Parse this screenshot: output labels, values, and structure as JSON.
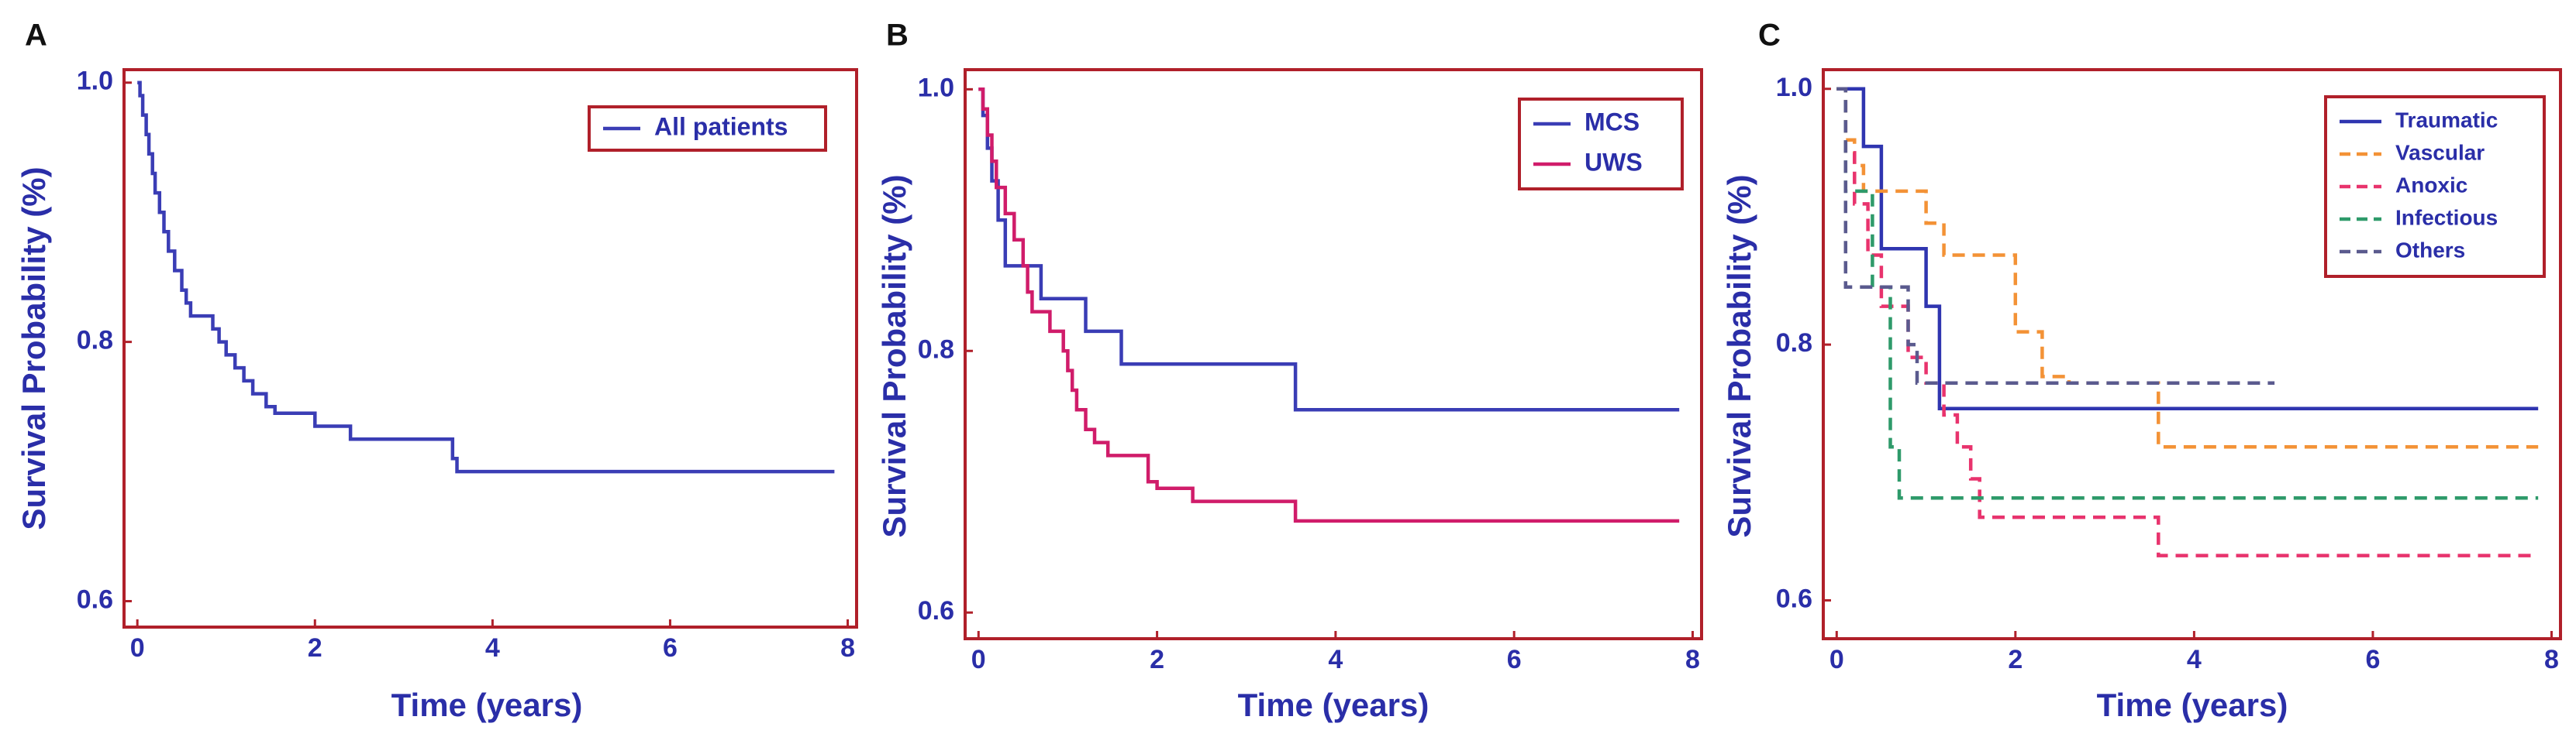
{
  "colors": {
    "frame": "#b0202a",
    "axis_text": "#2a2ea8"
  },
  "chart_data": [
    {
      "type": "line",
      "panel": "A",
      "title": "",
      "xlabel": "Time (years)",
      "ylabel": "Survival Probability (%)",
      "xlim": [
        -0.15,
        8.1
      ],
      "ylim": [
        0.58,
        1.01
      ],
      "xticks": [
        "0",
        "2",
        "4",
        "6",
        "8"
      ],
      "yticks": [
        "0.6",
        "0.8",
        "1.0"
      ],
      "legend": {
        "position": "top-right",
        "entries": [
          "All patients"
        ]
      },
      "series": [
        {
          "name": "All patients",
          "color": "#3a3db5",
          "style": "solid",
          "x": [
            0,
            0.03,
            0.06,
            0.1,
            0.13,
            0.17,
            0.2,
            0.25,
            0.3,
            0.35,
            0.42,
            0.5,
            0.55,
            0.6,
            0.85,
            0.92,
            1.0,
            1.1,
            1.2,
            1.3,
            1.45,
            1.55,
            2.0,
            2.4,
            3.55,
            3.6,
            7.85
          ],
          "y": [
            1.0,
            0.99,
            0.975,
            0.96,
            0.945,
            0.93,
            0.915,
            0.9,
            0.885,
            0.87,
            0.855,
            0.84,
            0.83,
            0.82,
            0.81,
            0.8,
            0.79,
            0.78,
            0.77,
            0.76,
            0.75,
            0.745,
            0.735,
            0.725,
            0.71,
            0.7,
            0.7
          ]
        }
      ]
    },
    {
      "type": "line",
      "panel": "B",
      "title": "",
      "xlabel": "Time (years)",
      "ylabel": "Survival Probability (%)",
      "xlim": [
        -0.15,
        8.1
      ],
      "ylim": [
        0.58,
        1.015
      ],
      "xticks": [
        "0",
        "2",
        "4",
        "6",
        "8"
      ],
      "yticks": [
        "0.6",
        "0.8",
        "1.0"
      ],
      "legend": {
        "position": "top-right",
        "entries": [
          "MCS",
          "UWS"
        ]
      },
      "series": [
        {
          "name": "MCS",
          "color": "#3a3db5",
          "style": "solid",
          "x": [
            0,
            0.05,
            0.1,
            0.15,
            0.22,
            0.3,
            0.5,
            0.7,
            1.2,
            1.6,
            3.55,
            7.85
          ],
          "y": [
            1.0,
            0.98,
            0.955,
            0.93,
            0.9,
            0.865,
            0.865,
            0.84,
            0.815,
            0.79,
            0.755,
            0.755
          ]
        },
        {
          "name": "UWS",
          "color": "#d01c6a",
          "style": "solid",
          "x": [
            0,
            0.05,
            0.1,
            0.15,
            0.2,
            0.3,
            0.4,
            0.5,
            0.55,
            0.6,
            0.8,
            0.95,
            1.0,
            1.05,
            1.1,
            1.2,
            1.3,
            1.45,
            1.9,
            2.0,
            2.4,
            3.55,
            7.85
          ],
          "y": [
            1.0,
            0.985,
            0.965,
            0.945,
            0.925,
            0.905,
            0.885,
            0.865,
            0.845,
            0.83,
            0.815,
            0.8,
            0.785,
            0.77,
            0.755,
            0.74,
            0.73,
            0.72,
            0.7,
            0.695,
            0.685,
            0.67,
            0.67
          ]
        }
      ]
    },
    {
      "type": "line",
      "panel": "C",
      "title": "",
      "xlabel": "Time (years)",
      "ylabel": "Survival Probability (%)",
      "xlim": [
        -0.15,
        8.1
      ],
      "ylim": [
        0.57,
        1.015
      ],
      "xticks": [
        "0",
        "2",
        "4",
        "6",
        "8"
      ],
      "yticks": [
        "0.6",
        "0.8",
        "1.0"
      ],
      "legend": {
        "position": "top-right",
        "entries": [
          "Traumatic",
          "Vascular",
          "Anoxic",
          "Infectious",
          "Others"
        ]
      },
      "series": [
        {
          "name": "Traumatic",
          "color": "#2f35b0",
          "style": "solid",
          "x": [
            0,
            0.3,
            0.5,
            1.0,
            1.15,
            7.85
          ],
          "y": [
            1.0,
            0.955,
            0.875,
            0.83,
            0.75,
            0.75
          ]
        },
        {
          "name": "Vascular",
          "color": "#f39236",
          "style": "dashed",
          "x": [
            0,
            0.1,
            0.2,
            0.3,
            0.8,
            1.0,
            1.2,
            2.0,
            2.3,
            2.6,
            3.6,
            7.85
          ],
          "y": [
            1.0,
            0.96,
            0.94,
            0.92,
            0.92,
            0.895,
            0.87,
            0.81,
            0.775,
            0.77,
            0.72,
            0.72
          ]
        },
        {
          "name": "Anoxic",
          "color": "#e8336d",
          "style": "dashed",
          "x": [
            0,
            0.1,
            0.2,
            0.35,
            0.5,
            0.8,
            1.0,
            1.2,
            1.35,
            1.5,
            1.6,
            3.6,
            7.85
          ],
          "y": [
            1.0,
            0.95,
            0.91,
            0.87,
            0.83,
            0.79,
            0.77,
            0.745,
            0.72,
            0.695,
            0.665,
            0.635,
            0.635
          ]
        },
        {
          "name": "Infectious",
          "color": "#2e9a6a",
          "style": "dashed",
          "x": [
            0,
            0.1,
            0.4,
            0.6,
            0.7,
            7.85
          ],
          "y": [
            1.0,
            0.92,
            0.845,
            0.72,
            0.68,
            0.68
          ]
        },
        {
          "name": "Others",
          "color": "#5a5a8e",
          "style": "dashed",
          "x": [
            0,
            0.1,
            0.5,
            0.8,
            0.9,
            4.9
          ],
          "y": [
            1.0,
            0.845,
            0.845,
            0.8,
            0.77,
            0.77
          ]
        }
      ]
    }
  ]
}
